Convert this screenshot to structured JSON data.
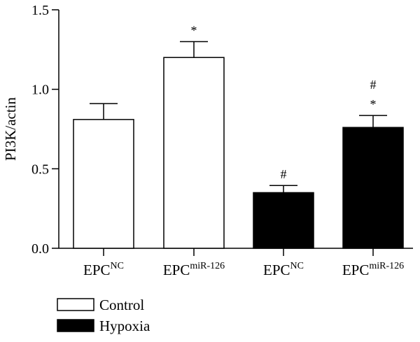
{
  "chart_data": {
    "type": "bar",
    "title": "",
    "xlabel": "",
    "ylabel": "PI3K/actin",
    "ylim": [
      0,
      1.5
    ],
    "yticks": [
      "0.0",
      "0.5",
      "1.0",
      "1.5"
    ],
    "grid": false,
    "legend_position": "bottom-left",
    "categories": [
      {
        "base": "EPC",
        "sup": "NC"
      },
      {
        "base": "EPC",
        "sup": "miR-126"
      },
      {
        "base": "EPC",
        "sup": "NC"
      },
      {
        "base": "EPC",
        "sup": "miR-126"
      }
    ],
    "bars": [
      {
        "value": 0.81,
        "error": 0.1,
        "group": "Control",
        "annotations": []
      },
      {
        "value": 1.2,
        "error": 0.1,
        "group": "Control",
        "annotations": [
          "*"
        ]
      },
      {
        "value": 0.35,
        "error": 0.045,
        "group": "Hypoxia",
        "annotations": [
          "#"
        ]
      },
      {
        "value": 0.76,
        "error": 0.075,
        "group": "Hypoxia",
        "annotations": [
          "*",
          "#"
        ]
      }
    ],
    "series": [
      {
        "name": "Control",
        "fill": "#ffffff"
      },
      {
        "name": "Hypoxia",
        "fill": "#000000"
      }
    ]
  }
}
